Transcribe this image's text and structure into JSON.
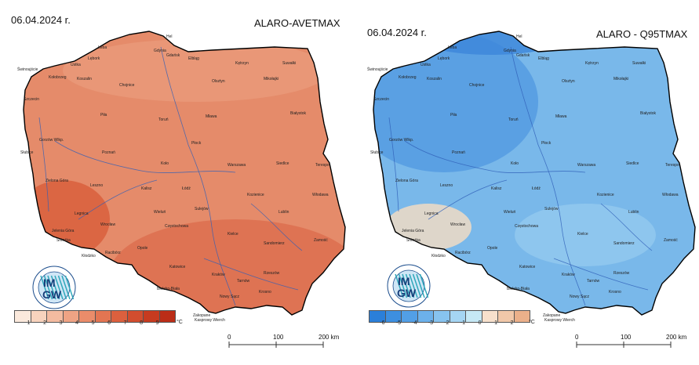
{
  "left_map": {
    "date": "06.04.2024 r.",
    "title": "ALARO-AVETMAX",
    "legend": {
      "labels": [
        "1",
        "2",
        "3",
        "4",
        "5",
        "6",
        "7",
        "8",
        "9"
      ],
      "unit": "°C",
      "colors": [
        "#fbe9dc",
        "#f8d3bd",
        "#f4bba0",
        "#efa384",
        "#ea8c6a",
        "#e37552",
        "#dc603e",
        "#d24d2e",
        "#c73b20",
        "#bb2d17"
      ]
    },
    "fill_main": "#e58b6a",
    "fill_south": "#dc6d4e",
    "fill_west": "#d9623f"
  },
  "right_map": {
    "date": "06.04.2024 r.",
    "title": "ALARO - Q95TMAX",
    "legend": {
      "labels": [
        "-6",
        "-5",
        "-4",
        "-3",
        "-2",
        "-1",
        "0",
        "1",
        "2"
      ],
      "unit": "°C",
      "colors": [
        "#2b7fd9",
        "#3d8fe0",
        "#529fe6",
        "#6cb1eb",
        "#87c3ef",
        "#a5d5f3",
        "#c6e8f5",
        "#f7e0cc",
        "#f1c8a9",
        "#ebb08a"
      ]
    },
    "fill_main": "#79b8ea",
    "fill_north": "#4d96df",
    "fill_south": "#e9d9c6"
  },
  "cities": [
    {
      "name": "Łeba"
    },
    {
      "name": "Lębork"
    },
    {
      "name": "Hel"
    },
    {
      "name": "Gdynia"
    },
    {
      "name": "Gdańsk"
    },
    {
      "name": "Elbląg"
    },
    {
      "name": "Kętrzyn"
    },
    {
      "name": "Suwałki"
    },
    {
      "name": "Świnoujście"
    },
    {
      "name": "Kołobrzeg"
    },
    {
      "name": "Koszalin"
    },
    {
      "name": "Ustka"
    },
    {
      "name": "Szczecin"
    },
    {
      "name": "Chojnice"
    },
    {
      "name": "Olsztyn"
    },
    {
      "name": "Mikołajki"
    },
    {
      "name": "Białystok"
    },
    {
      "name": "Piła"
    },
    {
      "name": "Toruń"
    },
    {
      "name": "Mława"
    },
    {
      "name": "Gorzów Wlkp."
    },
    {
      "name": "Płock"
    },
    {
      "name": "Poznań"
    },
    {
      "name": "Słubice"
    },
    {
      "name": "Koło"
    },
    {
      "name": "Warszawa"
    },
    {
      "name": "Siedlce"
    },
    {
      "name": "Terespol"
    },
    {
      "name": "Zielona Góra"
    },
    {
      "name": "Leszno"
    },
    {
      "name": "Kalisz"
    },
    {
      "name": "Łódź"
    },
    {
      "name": "Włodawa"
    },
    {
      "name": "Kozienice"
    },
    {
      "name": "Legnica"
    },
    {
      "name": "Wieluń"
    },
    {
      "name": "Sulejów"
    },
    {
      "name": "Lublin"
    },
    {
      "name": "Jelenia Góra"
    },
    {
      "name": "Śnieżka"
    },
    {
      "name": "Wrocław"
    },
    {
      "name": "Częstochowa"
    },
    {
      "name": "Kielce"
    },
    {
      "name": "Sandomierz"
    },
    {
      "name": "Zamość"
    },
    {
      "name": "Kłodzko"
    },
    {
      "name": "Opole"
    },
    {
      "name": "Katowice"
    },
    {
      "name": "Kraków"
    },
    {
      "name": "Tarnów"
    },
    {
      "name": "Rzeszów"
    },
    {
      "name": "Bielsko-Biała"
    },
    {
      "name": "Nowy Sącz"
    },
    {
      "name": "Krosno"
    },
    {
      "name": "Zakopane"
    },
    {
      "name": "Kasprowy Wierch"
    },
    {
      "name": "Racibórz"
    }
  ],
  "logo": {
    "text_top": "IM",
    "text_bottom": "GW"
  },
  "scale_bar": {
    "labels": [
      "0",
      "100",
      "200 km"
    ]
  }
}
